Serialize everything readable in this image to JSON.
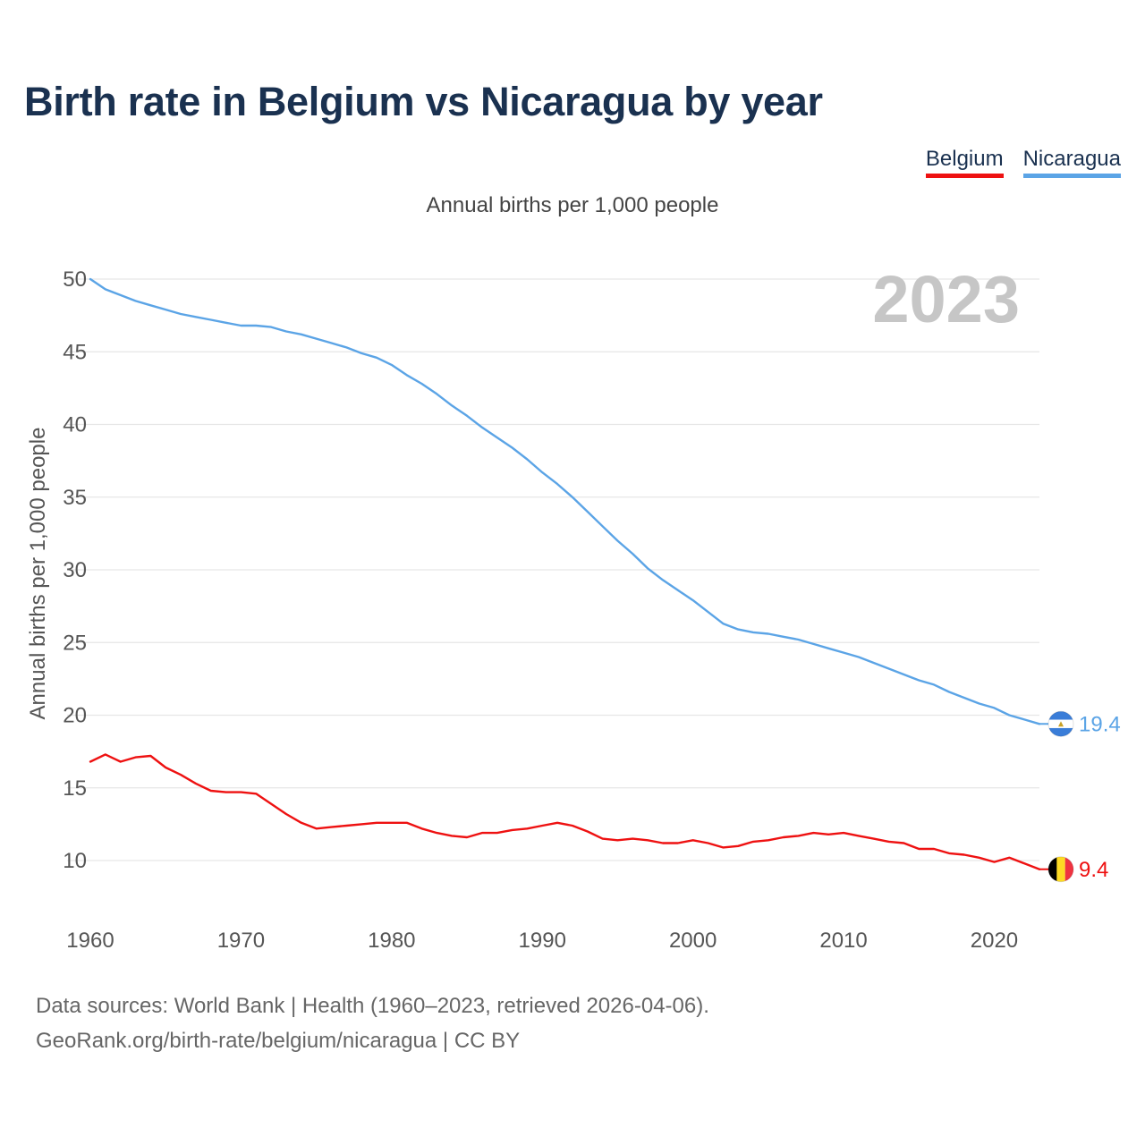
{
  "title": "Birth rate in Belgium vs Nicaragua by year",
  "legend": [
    {
      "label": "Belgium",
      "color": "#ee1111"
    },
    {
      "label": "Nicaragua",
      "color": "#5ba4e6"
    }
  ],
  "subtitle": "Annual births per 1,000 people",
  "year_badge": "2023",
  "footer": {
    "line1": "Data sources: World Bank | Health (1960–2023, retrieved 2026-04-06).",
    "line2": "GeoRank.org/birth-rate/belgium/nicaragua | CC BY"
  },
  "chart_data": {
    "type": "line",
    "title": "Birth rate in Belgium vs Nicaragua by year",
    "xlabel": "",
    "ylabel": "Annual births per 1,000 people",
    "xlim": [
      1960,
      2023
    ],
    "ylim": [
      7,
      51
    ],
    "xticks": [
      1960,
      1970,
      1980,
      1990,
      2000,
      2010,
      2020
    ],
    "yticks": [
      10,
      15,
      20,
      25,
      30,
      35,
      40,
      45,
      50
    ],
    "grid": true,
    "legend_position": "top-right",
    "x": [
      1960,
      1961,
      1962,
      1963,
      1964,
      1965,
      1966,
      1967,
      1968,
      1969,
      1970,
      1971,
      1972,
      1973,
      1974,
      1975,
      1976,
      1977,
      1978,
      1979,
      1980,
      1981,
      1982,
      1983,
      1984,
      1985,
      1986,
      1987,
      1988,
      1989,
      1990,
      1991,
      1992,
      1993,
      1994,
      1995,
      1996,
      1997,
      1998,
      1999,
      2000,
      2001,
      2002,
      2003,
      2004,
      2005,
      2006,
      2007,
      2008,
      2009,
      2010,
      2011,
      2012,
      2013,
      2014,
      2015,
      2016,
      2017,
      2018,
      2019,
      2020,
      2021,
      2022,
      2023
    ],
    "series": [
      {
        "name": "Belgium",
        "color": "#ee1111",
        "end_label": "9.4",
        "flag": "belgium-flag",
        "values": [
          16.8,
          17.3,
          16.8,
          17.1,
          17.2,
          16.4,
          15.9,
          15.3,
          14.8,
          14.7,
          14.7,
          14.6,
          13.9,
          13.2,
          12.6,
          12.2,
          12.3,
          12.4,
          12.5,
          12.6,
          12.6,
          12.6,
          12.2,
          11.9,
          11.7,
          11.6,
          11.9,
          11.9,
          12.1,
          12.2,
          12.4,
          12.6,
          12.4,
          12.0,
          11.5,
          11.4,
          11.5,
          11.4,
          11.2,
          11.2,
          11.4,
          11.2,
          10.9,
          11.0,
          11.3,
          11.4,
          11.6,
          11.7,
          11.9,
          11.8,
          11.9,
          11.7,
          11.5,
          11.3,
          11.2,
          10.8,
          10.8,
          10.5,
          10.4,
          10.2,
          9.9,
          10.2,
          9.8,
          9.4
        ]
      },
      {
        "name": "Nicaragua",
        "color": "#5ba4e6",
        "end_label": "19.4",
        "flag": "nicaragua-flag",
        "values": [
          50.0,
          49.3,
          48.9,
          48.5,
          48.2,
          47.9,
          47.6,
          47.4,
          47.2,
          47.0,
          46.8,
          46.8,
          46.7,
          46.4,
          46.2,
          45.9,
          45.6,
          45.3,
          44.9,
          44.6,
          44.1,
          43.4,
          42.8,
          42.1,
          41.3,
          40.6,
          39.8,
          39.1,
          38.4,
          37.6,
          36.7,
          35.9,
          35.0,
          34.0,
          33.0,
          32.0,
          31.1,
          30.1,
          29.3,
          28.6,
          27.9,
          27.1,
          26.3,
          25.9,
          25.7,
          25.6,
          25.4,
          25.2,
          24.9,
          24.6,
          24.3,
          24.0,
          23.6,
          23.2,
          22.8,
          22.4,
          22.1,
          21.6,
          21.2,
          20.8,
          20.5,
          20.0,
          19.7,
          19.4
        ]
      }
    ]
  }
}
